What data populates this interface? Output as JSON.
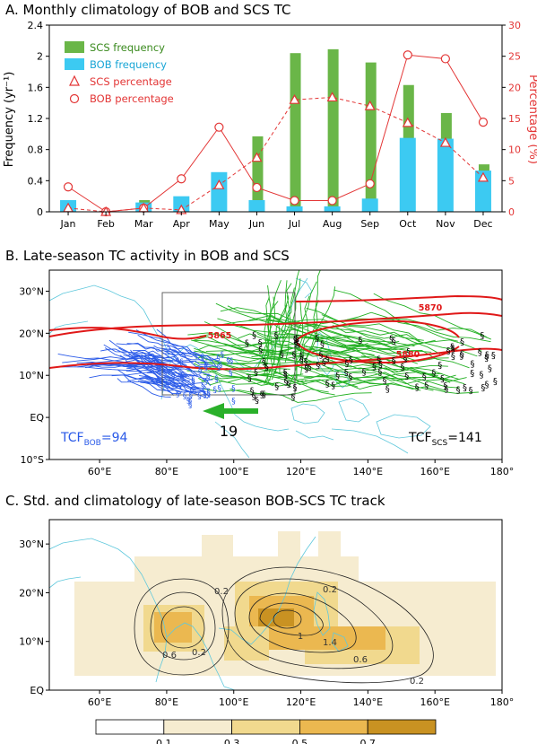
{
  "panel_a": {
    "title": "A. Monthly climatology of BOB and SCS TC"
  },
  "panel_b": {
    "title": "B. Late-season TC activity in BOB and SCS"
  },
  "panel_c": {
    "title": "C. Std. and climatology of late-season BOB-SCS TC track"
  },
  "colors": {
    "scs": "#6ab648",
    "bob": "#3ccaf2",
    "pct": "#e33636",
    "track_scs": "#22b022",
    "track_bob": "#2a5ae8",
    "contour_red": "#e01818",
    "coast": "#5fc8dc"
  },
  "chart_data": [
    {
      "type": "bar",
      "categories": [
        "Jan",
        "Feb",
        "Mar",
        "Apr",
        "May",
        "Jun",
        "Jul",
        "Aug",
        "Sep",
        "Oct",
        "Nov",
        "Dec"
      ],
      "series": [
        {
          "name": "SCS frequency",
          "kind": "bar",
          "axis": "left",
          "values": [
            0.0,
            0.0,
            0.15,
            0.0,
            0.45,
            0.97,
            2.04,
            2.09,
            1.92,
            1.63,
            1.27,
            0.61
          ]
        },
        {
          "name": "BOB frequency",
          "kind": "bar",
          "axis": "left",
          "values": [
            0.15,
            0.0,
            0.12,
            0.2,
            0.51,
            0.15,
            0.07,
            0.07,
            0.17,
            0.95,
            0.94,
            0.53
          ]
        },
        {
          "name": "SCS percentage",
          "kind": "line-triangle",
          "axis": "right",
          "values": [
            0.6,
            0.0,
            0.6,
            0.3,
            4.3,
            8.7,
            18.0,
            18.4,
            17.0,
            14.3,
            11.1,
            5.5
          ]
        },
        {
          "name": "BOB percentage",
          "kind": "line-circle",
          "axis": "right",
          "values": [
            4.0,
            0.0,
            0.6,
            5.3,
            13.6,
            3.9,
            1.8,
            1.8,
            4.5,
            25.2,
            24.6,
            14.4
          ]
        }
      ],
      "ylabel": "Frequency (yr⁻¹)",
      "y2label": "Percentage (%)",
      "ylim": [
        0,
        2.4
      ],
      "y2lim": [
        0,
        30
      ],
      "yticks": [
        "0",
        "0.4",
        "0.8",
        "1.2",
        "1.6",
        "2",
        "2.4"
      ],
      "y2ticks": [
        "0",
        "5",
        "10",
        "15",
        "20",
        "25",
        "30"
      ]
    },
    {
      "type": "map",
      "xticks": [
        "60°E",
        "80°E",
        "100°E",
        "120°E",
        "140°E",
        "160°E",
        "180°"
      ],
      "yticks": [
        "10°S",
        "EQ",
        "10°N",
        "20°N",
        "30°N"
      ],
      "contour_labels": [
        "5865",
        "5870",
        "5880"
      ],
      "annotations": {
        "bob_count": "94",
        "bob_label_main": "TCF",
        "bob_label_sub": "BOB",
        "scs_count": "141",
        "scs_label_main": "TCF",
        "scs_label_sub": "SCS",
        "arrow_label": "19"
      }
    },
    {
      "type": "map",
      "xticks": [
        "60°E",
        "80°E",
        "100°E",
        "120°E",
        "140°E",
        "160°E",
        "180°"
      ],
      "yticks": [
        "EQ",
        "10°N",
        "20°N",
        "30°N"
      ],
      "contour_labels": [
        "0.2",
        "0.2",
        "0.6",
        "0.2",
        "0.6",
        "1.4",
        "1",
        "0.2"
      ],
      "colorbar": {
        "ticks": [
          "0.1",
          "0.3",
          "0.5",
          "0.7"
        ],
        "colors": [
          "#ffffff",
          "#f6ecd0",
          "#f1d98e",
          "#ebb850",
          "#c99222"
        ]
      }
    }
  ]
}
